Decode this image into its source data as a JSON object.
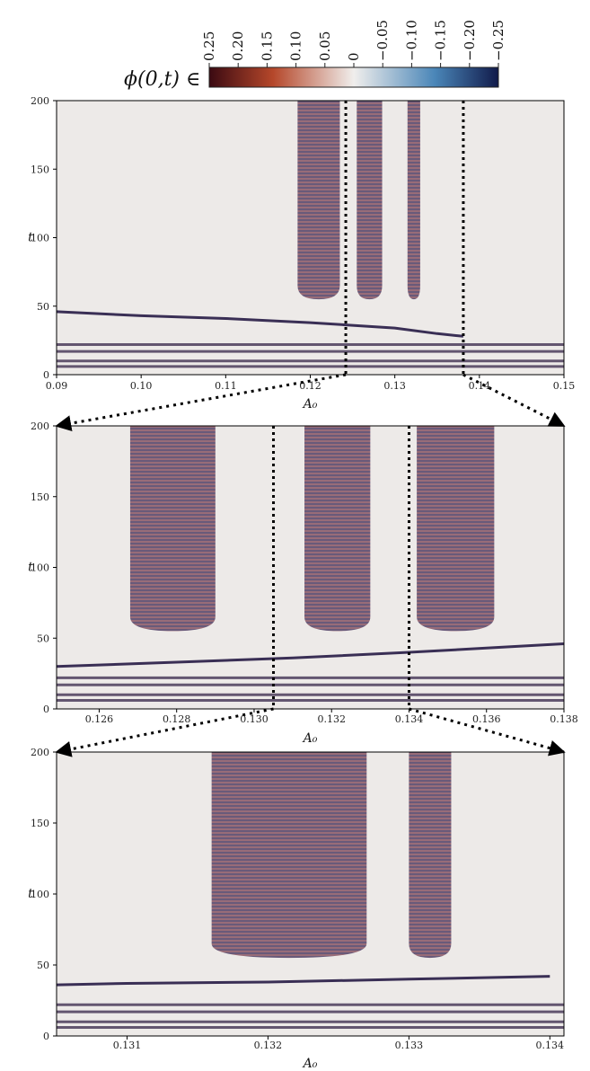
{
  "colorbar": {
    "label": "ϕ(0,t) ∈",
    "tick_labels": [
      "0.25",
      "0.20",
      "0.15",
      "0.10",
      "0.05",
      "0",
      "−0.05",
      "−0.10",
      "−0.15",
      "−0.20",
      "−0.25"
    ],
    "range": [
      0.25,
      -0.25
    ],
    "colors": {
      "max": "#3b0a12",
      "warm": "#b5472a",
      "mid": "#f0eeec",
      "cool": "#4a86b8",
      "min": "#111a4a"
    }
  },
  "chart_data": [
    {
      "type": "heatmap",
      "title": "",
      "xlabel": "A₀",
      "ylabel": "t",
      "xlim": [
        0.09,
        0.15
      ],
      "ylim": [
        0,
        200
      ],
      "x_ticks": [
        "0.09",
        "0.10",
        "0.11",
        "0.12",
        "0.13",
        "0.14",
        "0.15"
      ],
      "y_ticks": [
        "0",
        "50",
        "100",
        "150",
        "200"
      ],
      "zoom_region": [
        0.1242,
        0.1381
      ],
      "dense_bands": [
        [
          0.1185,
          0.1235
        ],
        [
          0.1255,
          0.1285
        ],
        [
          0.1315,
          0.133
        ]
      ],
      "collapse_time": [
        [
          0.09,
          46
        ],
        [
          0.1,
          43
        ],
        [
          0.11,
          41
        ],
        [
          0.12,
          38
        ],
        [
          0.125,
          36
        ],
        [
          0.13,
          34
        ],
        [
          0.135,
          30
        ],
        [
          0.1381,
          28
        ]
      ]
    },
    {
      "type": "heatmap",
      "title": "",
      "xlabel": "A₀",
      "ylabel": "t",
      "xlim": [
        0.1249,
        0.138
      ],
      "ylim": [
        0,
        200
      ],
      "x_ticks": [
        "0.126",
        "0.128",
        "0.130",
        "0.132",
        "0.134",
        "0.136",
        "0.138"
      ],
      "y_ticks": [
        "0",
        "50",
        "100",
        "150",
        "200"
      ],
      "zoom_region": [
        0.1305,
        0.134
      ],
      "dense_bands": [
        [
          0.1268,
          0.129
        ],
        [
          0.1313,
          0.133
        ],
        [
          0.1342,
          0.1362
        ]
      ],
      "collapse_time": [
        [
          0.1249,
          30
        ],
        [
          0.128,
          33
        ],
        [
          0.131,
          36
        ],
        [
          0.134,
          40
        ],
        [
          0.136,
          43
        ],
        [
          0.138,
          46
        ]
      ]
    },
    {
      "type": "heatmap",
      "title": "",
      "xlabel": "A₀",
      "ylabel": "t",
      "xlim": [
        0.1305,
        0.1341
      ],
      "ylim": [
        0,
        200
      ],
      "x_ticks": [
        "0.131",
        "0.132",
        "0.133",
        "0.134"
      ],
      "y_ticks": [
        "0",
        "50",
        "100",
        "150",
        "200"
      ],
      "dense_bands": [
        [
          0.1316,
          0.1327
        ],
        [
          0.133,
          0.1333
        ]
      ],
      "collapse_time": [
        [
          0.1305,
          36
        ],
        [
          0.131,
          37
        ],
        [
          0.132,
          38
        ],
        [
          0.133,
          40
        ],
        [
          0.134,
          42
        ]
      ]
    }
  ]
}
